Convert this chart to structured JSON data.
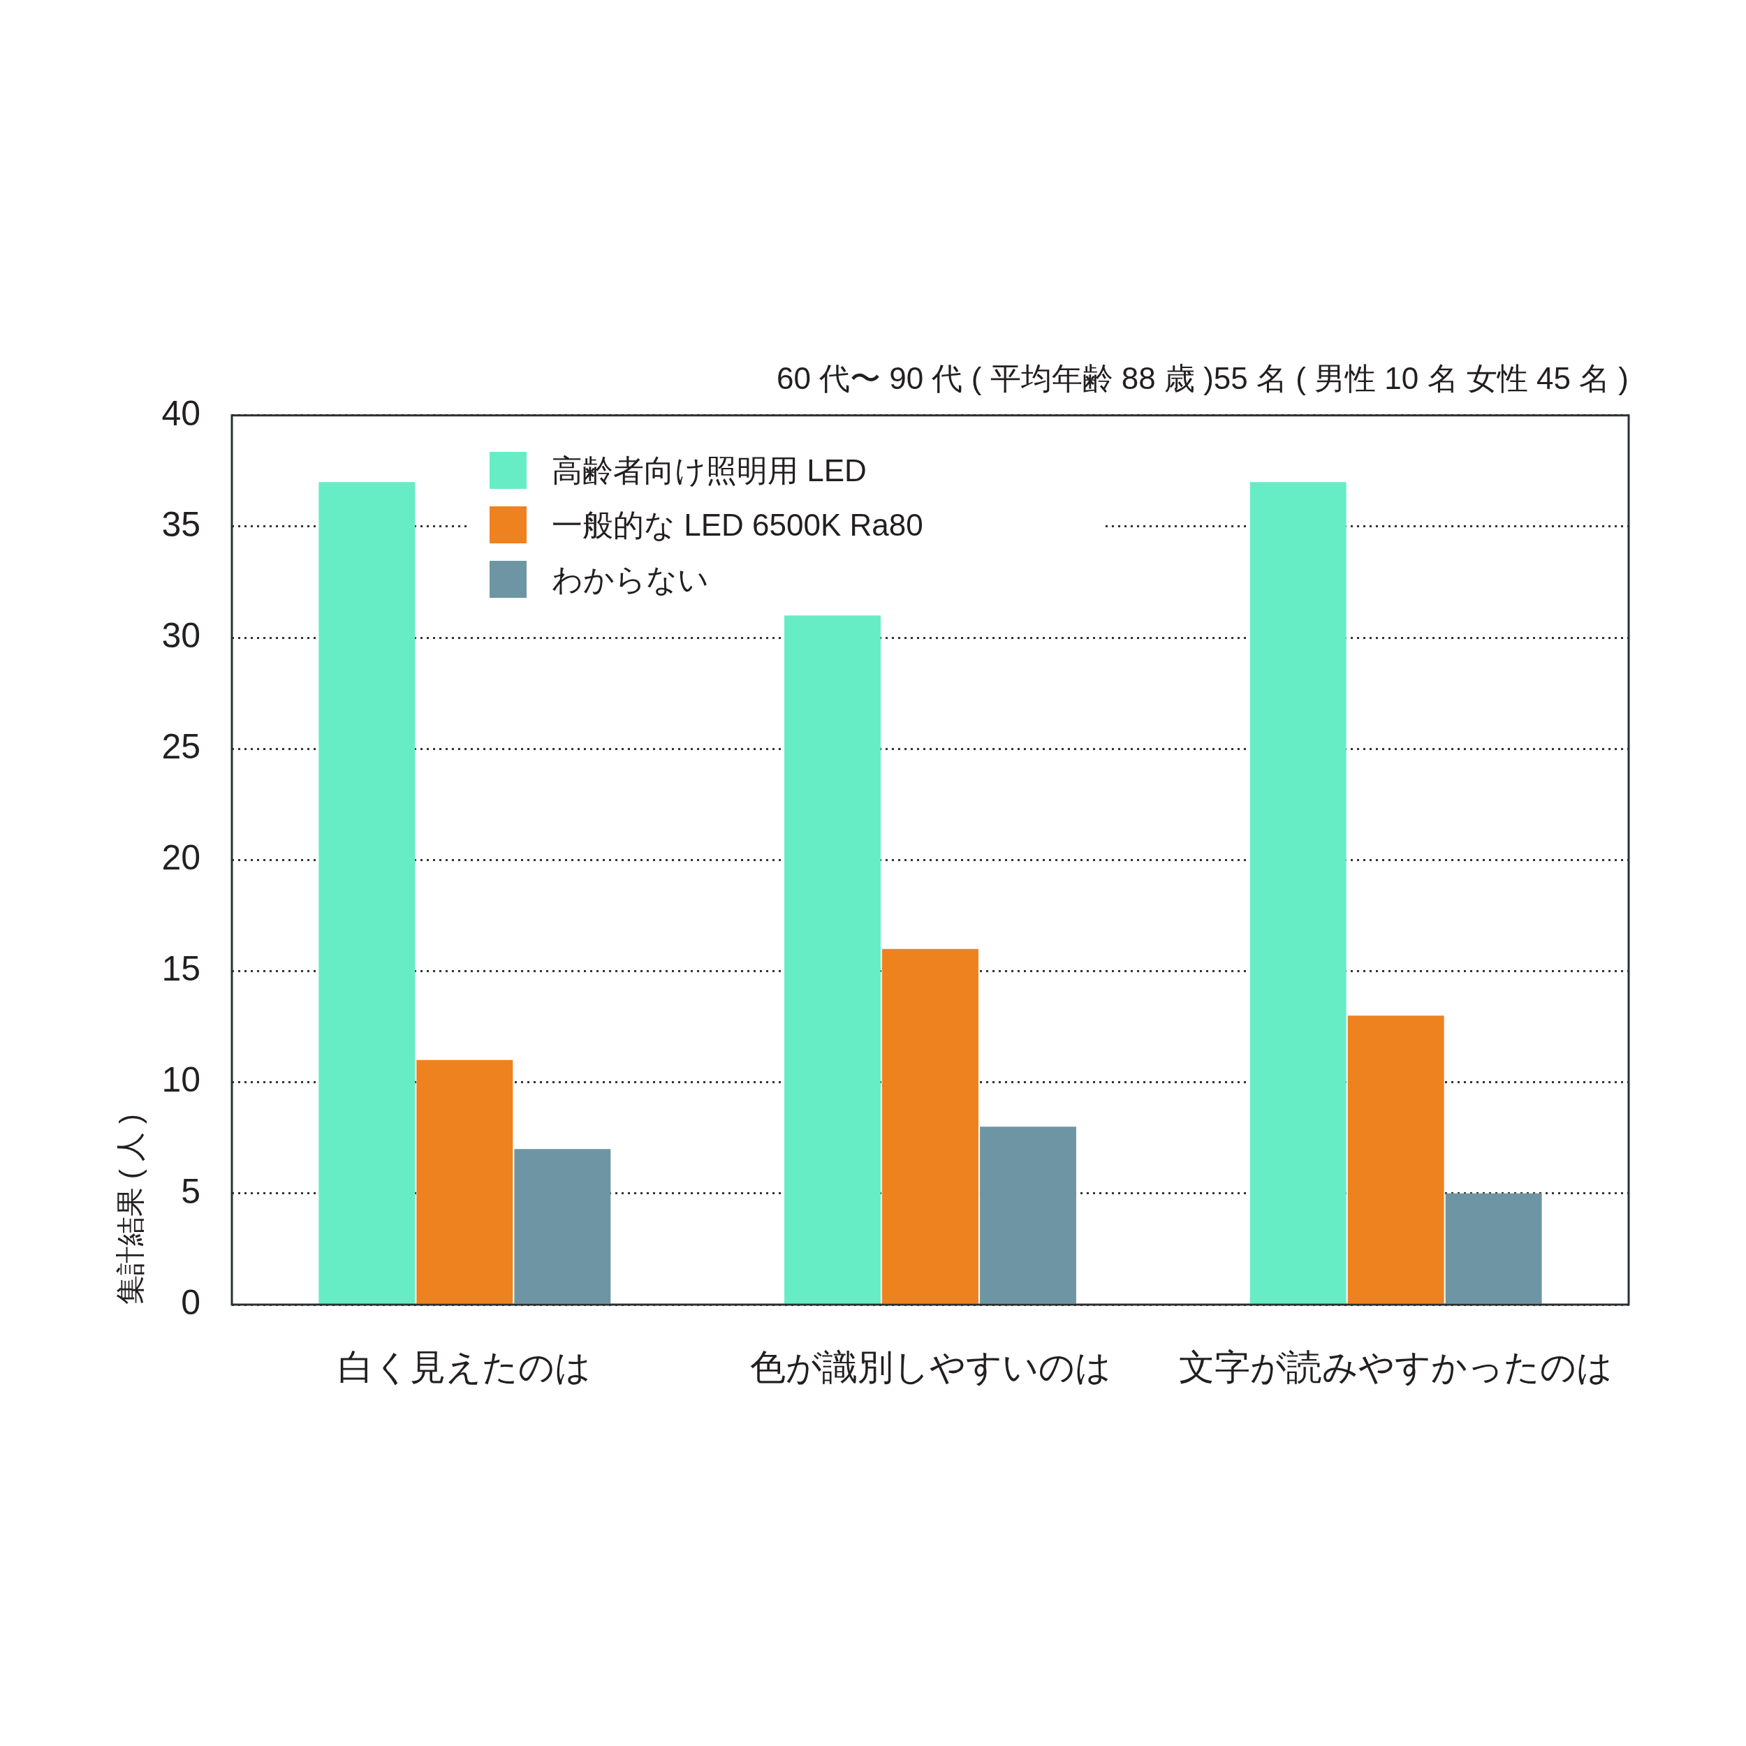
{
  "chart_data": {
    "type": "bar",
    "title": "60 代〜 90 代 ( 平均年齢 88 歳 )55 名 ( 男性 10 名 女性 45 名 )",
    "ylabel": "集計結果 ( 人 )",
    "categories": [
      "白く見えたのは",
      "色が識別しやすいのは",
      "文字が読みやすかったのは"
    ],
    "series": [
      {
        "name": "高齢者向け照明用 LED",
        "color": "#66edc6",
        "values": [
          37,
          31,
          37
        ]
      },
      {
        "name": "一般的な LED 6500K Ra80",
        "color": "#ee821f",
        "values": [
          11,
          16,
          13
        ]
      },
      {
        "name": "わからない",
        "color": "#6e95a3",
        "values": [
          7,
          8,
          5
        ]
      }
    ],
    "ylim": [
      0,
      40
    ],
    "yticks": [
      0,
      5,
      10,
      15,
      20,
      25,
      30,
      35,
      40
    ],
    "grid": "y",
    "legend": "top left"
  }
}
